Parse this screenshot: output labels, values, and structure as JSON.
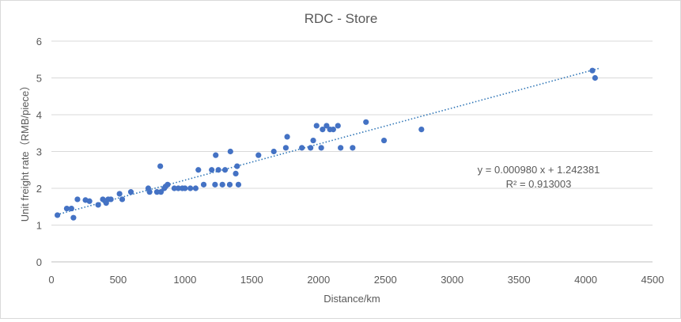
{
  "chart_data": {
    "type": "scatter",
    "title": "RDC - Store",
    "xlabel": "Distance/km",
    "ylabel": "Unit freight rate（RMB/piece）",
    "xlim": [
      0,
      4500
    ],
    "ylim": [
      0,
      6
    ],
    "x_ticks": [
      0,
      500,
      1000,
      1500,
      2000,
      2500,
      3000,
      3500,
      4000,
      4500
    ],
    "y_ticks": [
      0,
      1,
      2,
      3,
      4,
      5,
      6
    ],
    "grid": "horizontal",
    "legend": "none",
    "marker_color": "#4472c4",
    "trendline": {
      "type": "linear",
      "slope": 0.00098,
      "intercept": 1.242381,
      "x_range": [
        40,
        4100
      ],
      "color": "#2e75b6",
      "style": "dotted",
      "equation_label": "y = 0.000980 x + 1.242381",
      "r2_label": "R² = 0.913003"
    },
    "points": [
      [
        45,
        1.27
      ],
      [
        115,
        1.45
      ],
      [
        150,
        1.45
      ],
      [
        165,
        1.2
      ],
      [
        195,
        1.7
      ],
      [
        255,
        1.68
      ],
      [
        285,
        1.65
      ],
      [
        350,
        1.55
      ],
      [
        385,
        1.7
      ],
      [
        410,
        1.6
      ],
      [
        425,
        1.7
      ],
      [
        445,
        1.7
      ],
      [
        510,
        1.85
      ],
      [
        530,
        1.7
      ],
      [
        595,
        1.9
      ],
      [
        725,
        2.0
      ],
      [
        735,
        1.9
      ],
      [
        790,
        1.9
      ],
      [
        815,
        2.6
      ],
      [
        820,
        1.9
      ],
      [
        845,
        2.0
      ],
      [
        855,
        2.05
      ],
      [
        870,
        2.1
      ],
      [
        920,
        2.0
      ],
      [
        950,
        2.0
      ],
      [
        980,
        2.0
      ],
      [
        1000,
        2.0
      ],
      [
        1040,
        2.0
      ],
      [
        1080,
        2.0
      ],
      [
        1100,
        2.5
      ],
      [
        1140,
        2.1
      ],
      [
        1200,
        2.5
      ],
      [
        1225,
        2.1
      ],
      [
        1230,
        2.9
      ],
      [
        1250,
        2.5
      ],
      [
        1280,
        2.1
      ],
      [
        1300,
        2.5
      ],
      [
        1335,
        2.1
      ],
      [
        1340,
        3.0
      ],
      [
        1380,
        2.4
      ],
      [
        1390,
        2.6
      ],
      [
        1400,
        2.1
      ],
      [
        1550,
        2.9
      ],
      [
        1665,
        3.0
      ],
      [
        1755,
        3.1
      ],
      [
        1765,
        3.4
      ],
      [
        1875,
        3.1
      ],
      [
        1940,
        3.1
      ],
      [
        1960,
        3.3
      ],
      [
        1985,
        3.7
      ],
      [
        2020,
        3.1
      ],
      [
        2030,
        3.6
      ],
      [
        2060,
        3.7
      ],
      [
        2085,
        3.6
      ],
      [
        2110,
        3.6
      ],
      [
        2145,
        3.7
      ],
      [
        2165,
        3.1
      ],
      [
        2255,
        3.1
      ],
      [
        2355,
        3.8
      ],
      [
        2490,
        3.3
      ],
      [
        2770,
        3.6
      ],
      [
        4050,
        5.2
      ],
      [
        4070,
        5.0
      ]
    ]
  }
}
